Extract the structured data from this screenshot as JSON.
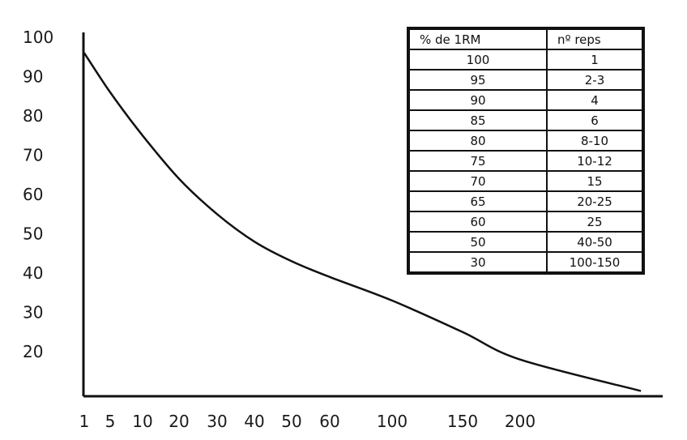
{
  "chart_data": {
    "type": "line",
    "title": "",
    "xlabel": "",
    "ylabel": "",
    "x_ticks": [
      "1",
      "5",
      "10",
      "20",
      "30",
      "40",
      "50",
      "60",
      "100",
      "150",
      "200"
    ],
    "y_ticks": [
      "100",
      "90",
      "80",
      "70",
      "60",
      "50",
      "40",
      "30",
      "20"
    ],
    "ylim": [
      10,
      100
    ],
    "grid": false,
    "x": [
      1,
      5,
      10,
      20,
      30,
      40,
      50,
      60,
      100,
      150,
      200,
      250
    ],
    "values": [
      96,
      86,
      75,
      64,
      55,
      48,
      43,
      39,
      33,
      25,
      18,
      10
    ]
  },
  "table": {
    "headers": [
      "% de 1RM",
      "nº reps"
    ],
    "rows": [
      [
        "100",
        "1"
      ],
      [
        "95",
        "2-3"
      ],
      [
        "90",
        "4"
      ],
      [
        "85",
        "6"
      ],
      [
        "80",
        "8-10"
      ],
      [
        "75",
        "10-12"
      ],
      [
        "70",
        "15"
      ],
      [
        "65",
        "20-25"
      ],
      [
        "60",
        "25"
      ],
      [
        "50",
        "40-50"
      ],
      [
        "30",
        "100-150"
      ]
    ]
  }
}
